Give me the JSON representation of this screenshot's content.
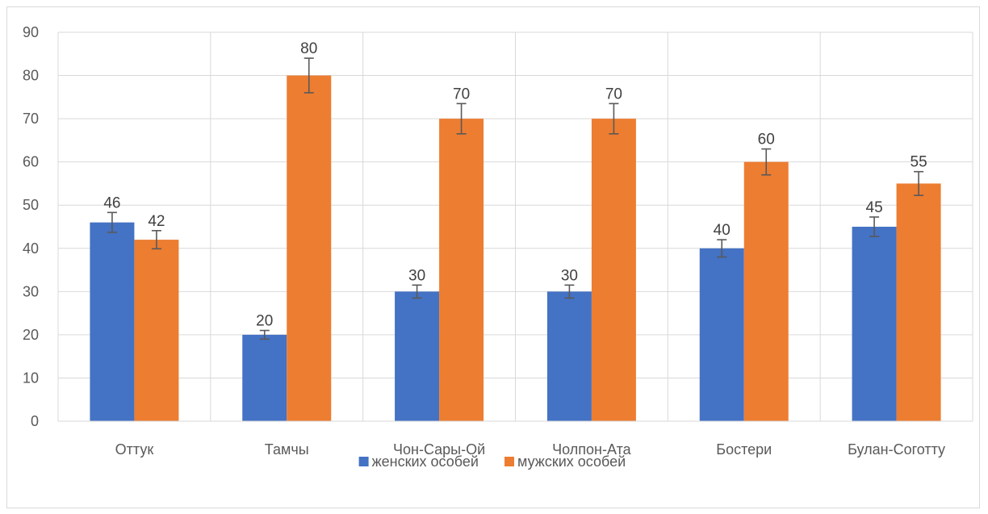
{
  "chart_data": {
    "type": "bar",
    "title": "",
    "xlabel": "",
    "ylabel": "",
    "categories": [
      "Оттук",
      "Тамчы",
      "Чон-Сары-Ой",
      "Чолпон-Ата",
      "Бостери",
      "Булан-Соготту"
    ],
    "series": [
      {
        "name": "женских особей",
        "color": "#4472c4",
        "values": [
          46,
          20,
          30,
          30,
          40,
          45
        ],
        "errors": [
          2.3,
          1.0,
          1.5,
          1.5,
          2.0,
          2.25
        ]
      },
      {
        "name": "мужских особей",
        "color": "#ed7d31",
        "values": [
          42,
          80,
          70,
          70,
          60,
          55
        ],
        "errors": [
          2.1,
          4.0,
          3.5,
          3.5,
          3.0,
          2.75
        ]
      }
    ],
    "ylim": [
      0,
      90
    ],
    "yticks": [
      0,
      10,
      20,
      30,
      40,
      50,
      60,
      70,
      80,
      90
    ],
    "data_labels": true,
    "grid": true,
    "legend": "bottom"
  }
}
